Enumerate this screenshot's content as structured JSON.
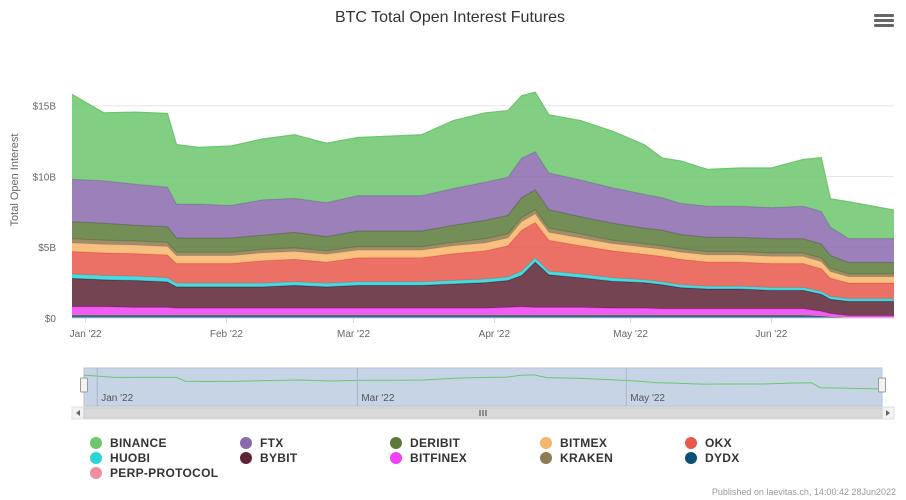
{
  "chart_data": {
    "type": "area",
    "title": "BTC Total Open Interest Futures",
    "ylabel": "Total Open Interest",
    "y_ticks": [
      "$0",
      "$5B",
      "$10B",
      "$15B"
    ],
    "ylim": [
      0,
      19.5
    ],
    "x_ticks": [
      "Jan '22",
      "Feb '22",
      "Mar '22",
      "Apr '22",
      "May '22",
      "Jun '22"
    ],
    "navigator_ticks": [
      "Jan '22",
      "Mar '22",
      "May '22"
    ],
    "x_dates": [
      "2021-12-29",
      "2022-01-05",
      "2022-01-12",
      "2022-01-19",
      "2022-01-21",
      "2022-01-26",
      "2022-02-02",
      "2022-02-09",
      "2022-02-16",
      "2022-02-23",
      "2022-03-02",
      "2022-03-09",
      "2022-03-16",
      "2022-03-23",
      "2022-03-30",
      "2022-04-04",
      "2022-04-07",
      "2022-04-10",
      "2022-04-13",
      "2022-04-20",
      "2022-04-27",
      "2022-05-04",
      "2022-05-08",
      "2022-05-12",
      "2022-05-18",
      "2022-05-25",
      "2022-06-01",
      "2022-06-08",
      "2022-06-12",
      "2022-06-14",
      "2022-06-18",
      "2022-06-23",
      "2022-06-28"
    ],
    "stack_order_bottom_to_top": [
      "DYDX",
      "PERP-PROTOCOL",
      "BITFINEX",
      "BYBIT",
      "HUOBI",
      "OKX",
      "BITMEX",
      "KRAKEN",
      "DERIBIT",
      "FTX",
      "BINANCE"
    ],
    "series": [
      {
        "name": "DYDX",
        "color": "#0a4f75",
        "values": [
          0.2,
          0.2,
          0.2,
          0.2,
          0.2,
          0.2,
          0.2,
          0.2,
          0.2,
          0.2,
          0.2,
          0.2,
          0.2,
          0.2,
          0.2,
          0.2,
          0.2,
          0.2,
          0.2,
          0.2,
          0.2,
          0.2,
          0.2,
          0.2,
          0.2,
          0.2,
          0.2,
          0.2,
          0.15,
          0.1,
          0.05,
          0.05,
          0.05
        ]
      },
      {
        "name": "PERP-PROTOCOL",
        "color": "#f28f9c",
        "values": [
          0.05,
          0.05,
          0.05,
          0.05,
          0.05,
          0.05,
          0.05,
          0.05,
          0.05,
          0.05,
          0.05,
          0.05,
          0.05,
          0.05,
          0.05,
          0.05,
          0.05,
          0.05,
          0.05,
          0.05,
          0.05,
          0.05,
          0.05,
          0.05,
          0.05,
          0.05,
          0.05,
          0.05,
          0.03,
          0.02,
          0.02,
          0.02,
          0.02
        ]
      },
      {
        "name": "BITFINEX",
        "color": "#f040f5",
        "values": [
          0.55,
          0.55,
          0.5,
          0.5,
          0.45,
          0.45,
          0.45,
          0.45,
          0.45,
          0.45,
          0.45,
          0.45,
          0.45,
          0.45,
          0.45,
          0.5,
          0.55,
          0.5,
          0.5,
          0.5,
          0.45,
          0.45,
          0.4,
          0.4,
          0.4,
          0.4,
          0.4,
          0.4,
          0.3,
          0.2,
          0.1,
          0.1,
          0.1
        ]
      },
      {
        "name": "BYBIT",
        "color": "#5c2335",
        "values": [
          2.0,
          1.9,
          1.9,
          1.8,
          1.5,
          1.5,
          1.5,
          1.5,
          1.6,
          1.5,
          1.6,
          1.6,
          1.6,
          1.7,
          1.8,
          1.9,
          2.2,
          3.2,
          2.3,
          2.1,
          1.9,
          1.8,
          1.7,
          1.5,
          1.4,
          1.4,
          1.3,
          1.3,
          1.2,
          1.0,
          1.0,
          1.0,
          1.0
        ]
      },
      {
        "name": "HUOBI",
        "color": "#2cd4da",
        "values": [
          0.3,
          0.3,
          0.3,
          0.3,
          0.25,
          0.25,
          0.25,
          0.25,
          0.25,
          0.25,
          0.25,
          0.25,
          0.25,
          0.25,
          0.25,
          0.25,
          0.3,
          0.3,
          0.25,
          0.25,
          0.25,
          0.2,
          0.2,
          0.2,
          0.2,
          0.2,
          0.2,
          0.2,
          0.2,
          0.2,
          0.2,
          0.2,
          0.2
        ]
      },
      {
        "name": "OKX",
        "color": "#e8574a",
        "values": [
          1.6,
          1.6,
          1.6,
          1.6,
          1.4,
          1.4,
          1.4,
          1.6,
          1.6,
          1.5,
          1.7,
          1.7,
          1.7,
          1.9,
          2.0,
          2.2,
          2.9,
          2.5,
          2.2,
          2.0,
          1.9,
          1.8,
          1.8,
          1.8,
          1.7,
          1.7,
          1.7,
          1.7,
          1.6,
          1.3,
          1.1,
          1.1,
          1.1
        ]
      },
      {
        "name": "BITMEX",
        "color": "#f7b56b",
        "values": [
          0.6,
          0.6,
          0.6,
          0.6,
          0.55,
          0.55,
          0.55,
          0.55,
          0.55,
          0.55,
          0.55,
          0.55,
          0.55,
          0.55,
          0.55,
          0.55,
          0.6,
          0.6,
          0.55,
          0.55,
          0.5,
          0.5,
          0.5,
          0.5,
          0.5,
          0.5,
          0.5,
          0.5,
          0.5,
          0.45,
          0.45,
          0.45,
          0.45
        ]
      },
      {
        "name": "KRAKEN",
        "color": "#8b7a55",
        "values": [
          0.3,
          0.3,
          0.3,
          0.3,
          0.25,
          0.25,
          0.25,
          0.25,
          0.25,
          0.25,
          0.25,
          0.25,
          0.25,
          0.25,
          0.3,
          0.3,
          0.3,
          0.3,
          0.3,
          0.3,
          0.25,
          0.25,
          0.25,
          0.25,
          0.25,
          0.25,
          0.25,
          0.25,
          0.25,
          0.25,
          0.2,
          0.2,
          0.2
        ]
      },
      {
        "name": "DERIBIT",
        "color": "#5b7a3a",
        "values": [
          1.2,
          1.2,
          1.1,
          1.1,
          1.0,
          1.0,
          1.0,
          1.0,
          1.1,
          1.0,
          1.1,
          1.1,
          1.1,
          1.2,
          1.3,
          1.3,
          1.4,
          1.4,
          1.3,
          1.2,
          1.2,
          1.1,
          1.1,
          1.0,
          1.0,
          1.0,
          1.0,
          1.0,
          1.0,
          0.9,
          0.8,
          0.8,
          0.8
        ]
      },
      {
        "name": "FTX",
        "color": "#8a6aad",
        "values": [
          3.0,
          3.0,
          2.9,
          2.8,
          2.4,
          2.4,
          2.3,
          2.5,
          2.4,
          2.4,
          2.5,
          2.5,
          2.5,
          2.6,
          2.7,
          2.7,
          2.8,
          2.7,
          2.6,
          2.6,
          2.5,
          2.4,
          2.3,
          2.2,
          2.2,
          2.2,
          2.2,
          2.3,
          2.3,
          2.0,
          1.7,
          1.7,
          1.7
        ]
      },
      {
        "name": "BINANCE",
        "color": "#6cc66c",
        "values": [
          6.0,
          4.8,
          5.1,
          5.2,
          4.2,
          4.0,
          4.2,
          4.3,
          4.5,
          4.2,
          4.1,
          4.2,
          4.3,
          4.8,
          4.9,
          4.7,
          4.4,
          4.2,
          4.1,
          4.2,
          4.0,
          3.5,
          2.8,
          3.0,
          2.6,
          2.7,
          2.8,
          3.3,
          3.8,
          2.0,
          2.6,
          2.3,
          2.0
        ]
      }
    ],
    "legend_position": "bottom",
    "grid": true
  },
  "legend": [
    {
      "name": "BINANCE",
      "color": "#6cc66c"
    },
    {
      "name": "FTX",
      "color": "#8a6aad"
    },
    {
      "name": "DERIBIT",
      "color": "#5b7a3a"
    },
    {
      "name": "BITMEX",
      "color": "#f7b56b"
    },
    {
      "name": "OKX",
      "color": "#e8574a"
    },
    {
      "name": "HUOBI",
      "color": "#2cd4da"
    },
    {
      "name": "BYBIT",
      "color": "#5c2335"
    },
    {
      "name": "BITFINEX",
      "color": "#f040f5"
    },
    {
      "name": "KRAKEN",
      "color": "#8b7a55"
    },
    {
      "name": "DYDX",
      "color": "#0a4f75"
    },
    {
      "name": "PERP-PROTOCOL",
      "color": "#f28f9c"
    }
  ],
  "credits": "Published on laevitas.ch, 14:00:42 28Jun2022",
  "menu_icon": "hamburger-menu-icon"
}
